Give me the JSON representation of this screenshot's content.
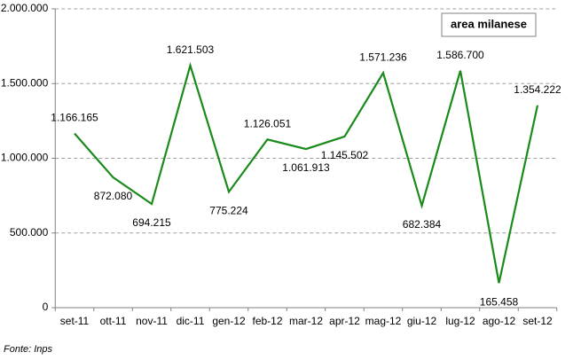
{
  "chart_data": {
    "type": "line",
    "categories": [
      "set-11",
      "ott-11",
      "nov-11",
      "dic-11",
      "gen-12",
      "feb-12",
      "mar-12",
      "apr-12",
      "mag-12",
      "giu-12",
      "lug-12",
      "ago-12",
      "set-12"
    ],
    "series": [
      {
        "name": "area milanese",
        "color": "#1a8a1a",
        "values": [
          1166165,
          872080,
          694215,
          1621503,
          775224,
          1126051,
          1061913,
          1145502,
          1571236,
          682384,
          1586700,
          165458,
          1354222
        ],
        "value_labels": [
          "1.166.165",
          "872.080",
          "694.215",
          "1.621.503",
          "775.224",
          "1.126.051",
          "1.061.913",
          "1.145.502",
          "1.571.236",
          "682.384",
          "1.586.700",
          "165.458",
          "1.354.222"
        ]
      }
    ],
    "ylim": [
      0,
      2000000
    ],
    "yticks": [
      0,
      {
        "value": 500000,
        "label": "500.000"
      },
      {
        "value": 1000000,
        "label": "1.000.000"
      },
      {
        "value": 1500000,
        "label": "1.500.000"
      },
      {
        "value": 2000000,
        "label": "2.000.000"
      }
    ],
    "grid": true,
    "source": "Fonte: Inps"
  }
}
